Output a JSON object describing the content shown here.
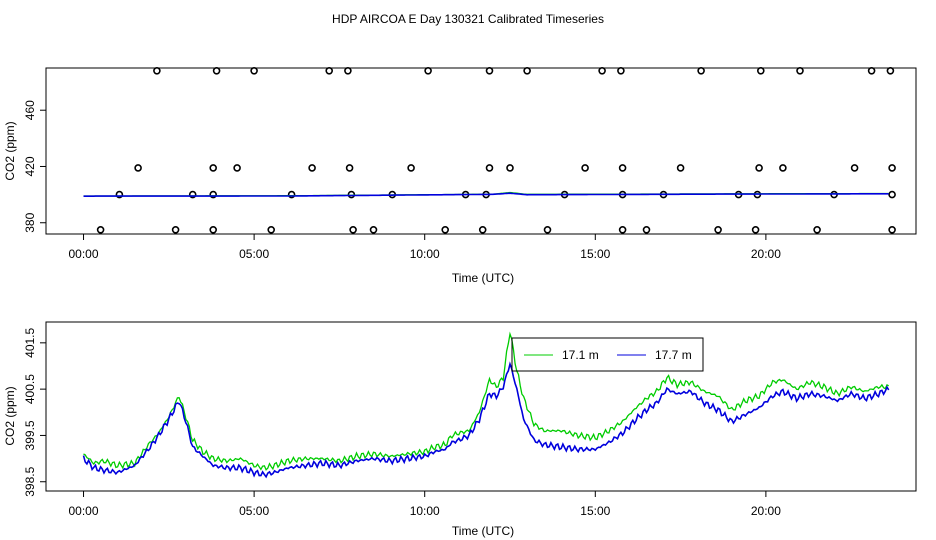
{
  "title": "HDP AIRCOA E  Day 130321  Calibrated Timeseries",
  "colors": {
    "green": "#00cc00",
    "blue": "#0000dd",
    "black": "#000000",
    "background": "#ffffff"
  },
  "chart_data": [
    {
      "type": "scatter+line",
      "xlabel": "Time (UTC)",
      "ylabel": "CO2 (ppm)",
      "xlim": [
        -1.1,
        24.4
      ],
      "ylim": [
        372,
        490
      ],
      "x_ticks": [
        0,
        5,
        10,
        15,
        20
      ],
      "x_tick_labels": [
        "00:00",
        "05:00",
        "10:00",
        "15:00",
        "20:00"
      ],
      "y_ticks": [
        380,
        420,
        460
      ],
      "y_tick_labels": [
        "380",
        "420",
        "460"
      ],
      "points": [
        [
          0.5,
          375
        ],
        [
          2.7,
          375
        ],
        [
          3.8,
          375
        ],
        [
          5.5,
          375
        ],
        [
          7.9,
          375
        ],
        [
          8.5,
          375
        ],
        [
          10.6,
          375
        ],
        [
          11.7,
          375
        ],
        [
          13.6,
          375
        ],
        [
          15.8,
          375
        ],
        [
          16.5,
          375
        ],
        [
          18.6,
          375
        ],
        [
          19.7,
          375
        ],
        [
          21.5,
          375
        ],
        [
          23.7,
          375
        ],
        [
          1.05,
          400
        ],
        [
          3.2,
          400
        ],
        [
          3.8,
          400
        ],
        [
          6.1,
          400
        ],
        [
          7.85,
          400
        ],
        [
          9.05,
          400
        ],
        [
          11.2,
          400
        ],
        [
          11.8,
          400
        ],
        [
          14.1,
          400
        ],
        [
          15.8,
          400
        ],
        [
          17.0,
          400
        ],
        [
          19.2,
          400
        ],
        [
          19.75,
          400
        ],
        [
          22.0,
          400
        ],
        [
          23.7,
          400
        ],
        [
          1.6,
          419
        ],
        [
          3.8,
          419
        ],
        [
          4.5,
          419
        ],
        [
          6.7,
          419
        ],
        [
          7.8,
          419
        ],
        [
          9.6,
          419
        ],
        [
          11.9,
          419
        ],
        [
          12.5,
          419
        ],
        [
          14.7,
          419
        ],
        [
          15.8,
          419
        ],
        [
          17.5,
          419
        ],
        [
          19.8,
          419
        ],
        [
          20.5,
          419
        ],
        [
          22.6,
          419
        ],
        [
          23.7,
          419
        ],
        [
          2.15,
          488
        ],
        [
          3.9,
          488
        ],
        [
          5.0,
          488
        ],
        [
          7.2,
          488
        ],
        [
          7.75,
          488
        ],
        [
          10.1,
          488
        ],
        [
          11.9,
          488
        ],
        [
          13.0,
          488
        ],
        [
          15.2,
          488
        ],
        [
          15.75,
          488
        ],
        [
          18.1,
          488
        ],
        [
          19.85,
          488
        ],
        [
          21.0,
          488
        ],
        [
          23.1,
          488
        ],
        [
          23.65,
          488
        ]
      ],
      "series": [
        {
          "name": "17.1 m",
          "color": "#00cc00",
          "x": [
            0,
            6,
            12,
            12.5,
            13,
            18,
            23.6
          ],
          "values": [
            399.0,
            399.2,
            400.3,
            401.5,
            400.2,
            400.5,
            400.8
          ]
        },
        {
          "name": "17.7 m",
          "color": "#0000dd",
          "x": [
            0,
            6,
            12,
            12.5,
            13,
            18,
            23.6
          ],
          "values": [
            398.9,
            399.0,
            400.2,
            401.0,
            399.9,
            400.3,
            400.6
          ]
        }
      ]
    },
    {
      "type": "line",
      "xlabel": "Time (UTC)",
      "ylabel": "CO2 (ppm)",
      "xlim": [
        -1.1,
        24.4
      ],
      "ylim": [
        398.3,
        401.95
      ],
      "x_ticks": [
        0,
        5,
        10,
        15,
        20
      ],
      "x_tick_labels": [
        "00:00",
        "05:00",
        "10:00",
        "15:00",
        "20:00"
      ],
      "y_ticks": [
        398.5,
        399.5,
        400.5,
        401.5
      ],
      "y_tick_labels": [
        "398.5",
        "399.5",
        "400.5",
        "401.5"
      ],
      "legend": {
        "placement": "top-center",
        "entries": [
          "17.1 m",
          "17.7 m"
        ]
      },
      "series": [
        {
          "name": "17.1 m",
          "color": "#00cc00",
          "x": [
            0,
            0.3,
            0.6,
            1.0,
            1.5,
            1.9,
            2.2,
            2.5,
            2.8,
            3.0,
            3.2,
            3.5,
            3.8,
            4.2,
            4.6,
            5.0,
            5.3,
            5.6,
            6.0,
            6.5,
            7.0,
            7.5,
            8.0,
            8.5,
            9.0,
            9.5,
            10.0,
            10.3,
            10.6,
            10.8,
            11.0,
            11.3,
            11.6,
            11.9,
            12.1,
            12.3,
            12.5,
            12.7,
            12.9,
            13.2,
            13.5,
            14.0,
            14.5,
            15.0,
            15.4,
            15.8,
            16.2,
            16.5,
            16.8,
            17.1,
            17.4,
            17.8,
            18.2,
            18.6,
            19.0,
            19.4,
            19.8,
            20.2,
            20.5,
            20.9,
            21.3,
            21.7,
            22.1,
            22.5,
            22.9,
            23.3,
            23.6
          ],
          "values": [
            399.1,
            398.9,
            398.95,
            398.85,
            398.9,
            399.3,
            399.55,
            399.9,
            400.35,
            399.9,
            399.4,
            399.15,
            399.0,
            398.95,
            399.0,
            398.85,
            398.8,
            398.85,
            398.95,
            399.0,
            399.0,
            398.95,
            399.05,
            399.1,
            399.05,
            399.1,
            399.15,
            399.25,
            399.3,
            399.5,
            399.55,
            399.6,
            400.0,
            400.7,
            400.55,
            400.75,
            401.75,
            400.9,
            400.3,
            399.75,
            399.6,
            399.6,
            399.5,
            399.45,
            399.6,
            399.8,
            400.1,
            400.3,
            400.45,
            400.75,
            400.6,
            400.65,
            400.45,
            400.35,
            400.05,
            400.25,
            400.35,
            400.65,
            400.7,
            400.5,
            400.65,
            400.55,
            400.4,
            400.55,
            400.45,
            400.55,
            400.55
          ]
        },
        {
          "name": "17.7 m",
          "color": "#0000dd",
          "x": [
            0,
            0.3,
            0.6,
            1.0,
            1.5,
            1.9,
            2.2,
            2.5,
            2.8,
            3.0,
            3.2,
            3.5,
            3.8,
            4.2,
            4.6,
            5.0,
            5.3,
            5.6,
            6.0,
            6.5,
            7.0,
            7.5,
            8.0,
            8.5,
            9.0,
            9.5,
            10.0,
            10.3,
            10.6,
            10.8,
            11.0,
            11.3,
            11.6,
            11.9,
            12.1,
            12.3,
            12.5,
            12.7,
            12.9,
            13.2,
            13.5,
            14.0,
            14.5,
            15.0,
            15.4,
            15.8,
            16.2,
            16.5,
            16.8,
            17.1,
            17.4,
            17.8,
            18.2,
            18.6,
            19.0,
            19.4,
            19.8,
            20.2,
            20.5,
            20.9,
            21.3,
            21.7,
            22.1,
            22.5,
            22.9,
            23.3,
            23.6
          ],
          "values": [
            399.0,
            398.8,
            398.75,
            398.7,
            398.85,
            399.2,
            399.5,
            399.85,
            400.25,
            399.8,
            399.25,
            399.05,
            398.85,
            398.8,
            398.8,
            398.7,
            398.65,
            398.7,
            398.8,
            398.85,
            398.9,
            398.85,
            398.95,
            399.0,
            398.95,
            399.0,
            399.05,
            399.15,
            399.2,
            399.35,
            399.4,
            399.5,
            399.85,
            400.4,
            400.35,
            400.55,
            401.05,
            400.5,
            399.85,
            399.4,
            399.3,
            399.25,
            399.2,
            399.2,
            399.35,
            399.55,
            399.85,
            400.05,
            400.2,
            400.5,
            400.4,
            400.45,
            400.2,
            400.05,
            399.8,
            399.95,
            400.1,
            400.35,
            400.45,
            400.3,
            400.4,
            400.35,
            400.25,
            400.4,
            400.3,
            400.4,
            400.5
          ]
        }
      ]
    }
  ]
}
